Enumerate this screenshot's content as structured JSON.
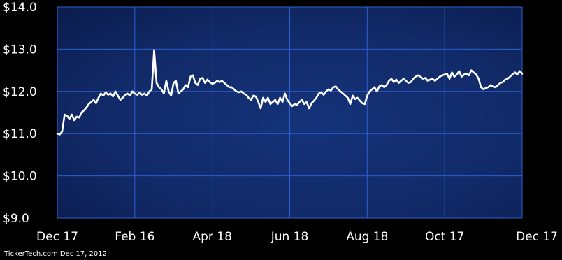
{
  "chart_data": {
    "type": "line",
    "title": "",
    "xlabel": "",
    "ylabel": "",
    "ylim": [
      9.0,
      14.0
    ],
    "yticks": [
      {
        "value": 14.0,
        "label": "$14.0"
      },
      {
        "value": 13.0,
        "label": "$13.0"
      },
      {
        "value": 12.0,
        "label": "$12.0"
      },
      {
        "value": 11.0,
        "label": "$11.0"
      },
      {
        "value": 10.0,
        "label": "$10.0"
      },
      {
        "value": 9.0,
        "label": "$9.0"
      }
    ],
    "xticks": [
      "Dec 17",
      "Feb 16",
      "Apr 18",
      "Jun 18",
      "Aug 18",
      "Oct 17",
      "Dec 17"
    ],
    "grid": true,
    "series": [
      {
        "values": [
          11.0,
          10.98,
          11.05,
          11.45,
          11.42,
          11.35,
          11.45,
          11.32,
          11.4,
          11.38,
          11.5,
          11.55,
          11.62,
          11.7,
          11.75,
          11.8,
          11.72,
          11.85,
          11.95,
          11.9,
          11.98,
          11.92,
          11.95,
          11.88,
          12.0,
          11.9,
          11.8,
          11.85,
          11.92,
          11.95,
          11.9,
          12.0,
          11.95,
          11.92,
          11.97,
          11.92,
          11.95,
          11.9,
          12.0,
          12.05,
          12.98,
          12.2,
          12.1,
          12.05,
          11.95,
          12.25,
          12.0,
          11.9,
          12.2,
          12.25,
          11.95,
          12.0,
          12.05,
          12.15,
          12.1,
          12.35,
          12.38,
          12.2,
          12.15,
          12.3,
          12.32,
          12.2,
          12.28,
          12.22,
          12.18,
          12.2,
          12.25,
          12.22,
          12.25,
          12.2,
          12.15,
          12.1,
          12.1,
          12.05,
          12.0,
          11.98,
          12.0,
          11.95,
          11.92,
          11.85,
          11.8,
          11.9,
          11.88,
          11.75,
          11.6,
          11.85,
          11.75,
          11.85,
          11.7,
          11.75,
          11.8,
          11.7,
          11.85,
          11.75,
          11.95,
          11.8,
          11.72,
          11.65,
          11.7,
          11.68,
          11.75,
          11.8,
          11.7,
          11.75,
          11.6,
          11.72,
          11.78,
          11.85,
          11.95,
          11.98,
          11.92,
          12.0,
          12.05,
          12.02,
          12.1,
          12.12,
          12.05,
          12.0,
          11.95,
          11.9,
          11.85,
          11.7,
          11.9,
          11.82,
          11.85,
          11.78,
          11.72,
          11.7,
          11.9,
          12.0,
          12.05,
          12.1,
          12.0,
          12.12,
          12.15,
          12.1,
          12.15,
          12.25,
          12.3,
          12.22,
          12.28,
          12.2,
          12.25,
          12.3,
          12.25,
          12.2,
          12.22,
          12.3,
          12.35,
          12.38,
          12.35,
          12.3,
          12.32,
          12.25,
          12.28,
          12.3,
          12.25,
          12.3,
          12.35,
          12.38,
          12.4,
          12.42,
          12.3,
          12.45,
          12.35,
          12.4,
          12.48,
          12.35,
          12.4,
          12.42,
          12.38,
          12.5,
          12.45,
          12.4,
          12.3,
          12.1,
          12.05,
          12.08,
          12.1,
          12.15,
          12.12,
          12.1,
          12.15,
          12.2,
          12.22,
          12.28,
          12.3,
          12.35,
          12.4,
          12.45,
          12.4,
          12.48,
          12.42
        ]
      }
    ]
  },
  "footer": {
    "credit": "TickerTech.com  Dec 17, 2012"
  }
}
